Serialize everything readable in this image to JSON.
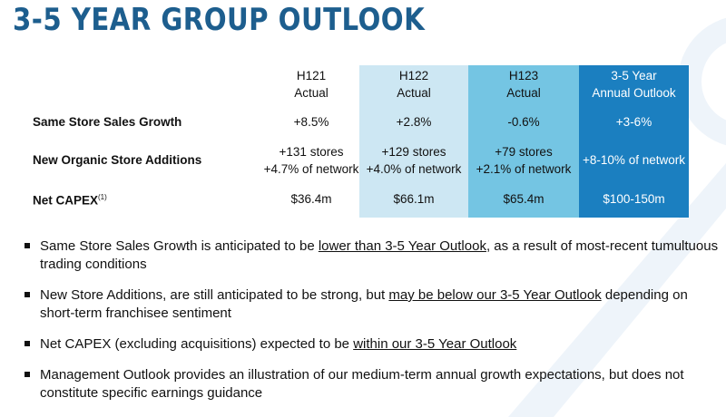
{
  "title": "3-5 YEAR GROUP OUTLOOK",
  "table": {
    "columns": [
      [
        "H121",
        "Actual"
      ],
      [
        "H122",
        "Actual"
      ],
      [
        "H123",
        "Actual"
      ],
      [
        "3-5 Year",
        "Annual Outlook"
      ]
    ],
    "rows": [
      {
        "label": "Same Store Sales Growth",
        "cells": [
          [
            "+8.5%"
          ],
          [
            "+2.8%"
          ],
          [
            "-0.6%"
          ],
          [
            "+3-6%"
          ]
        ]
      },
      {
        "label": "New Organic Store Additions",
        "cells": [
          [
            "+131 stores",
            "+4.7% of network"
          ],
          [
            "+129 stores",
            "+4.0% of network"
          ],
          [
            "+79 stores",
            "+2.1% of network"
          ],
          [
            "+8-10% of network"
          ]
        ]
      },
      {
        "label": "Net CAPEX",
        "note": "(1)",
        "cells": [
          [
            "$36.4m"
          ],
          [
            "$66.1m"
          ],
          [
            "$65.4m"
          ],
          [
            "$100-150m"
          ]
        ]
      }
    ]
  },
  "bullets": [
    [
      {
        "text": "Same Store Sales Growth is anticipated to be "
      },
      {
        "text": "lower than 3-5 Year Outlook",
        "underline": true
      },
      {
        "text": ", as a result of most-recent tumultuous trading conditions"
      }
    ],
    [
      {
        "text": "New Store Additions, are still anticipated to be strong, but "
      },
      {
        "text": "may be below our 3-5 Year Outlook",
        "underline": true
      },
      {
        "text": " depending on short-term franchisee sentiment"
      }
    ],
    [
      {
        "text": "Net CAPEX (excluding acquisitions) expected to be "
      },
      {
        "text": "within our 3-5 Year Outlook",
        "underline": true
      }
    ],
    [
      {
        "text": "Management Outlook provides an illustration of our medium-term annual growth expectations, but does not constitute specific earnings guidance"
      }
    ]
  ]
}
